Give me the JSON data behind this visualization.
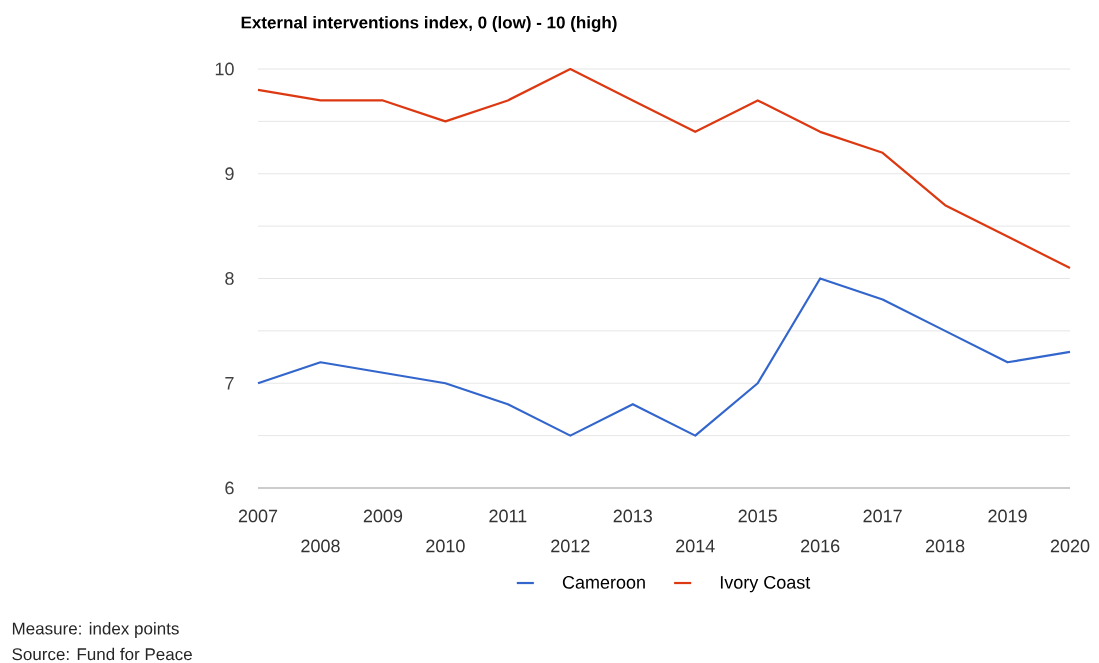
{
  "chart_data": {
    "type": "line",
    "title": "External interventions index, 0 (low) - 10 (high)",
    "categories": [
      "2007",
      "2008",
      "2009",
      "2010",
      "2011",
      "2012",
      "2013",
      "2014",
      "2015",
      "2016",
      "2017",
      "2018",
      "2019",
      "2020"
    ],
    "series": [
      {
        "name": "Cameroon",
        "color": "#3366cc",
        "values": [
          7.0,
          7.2,
          7.1,
          7.0,
          6.8,
          6.5,
          6.8,
          6.5,
          7.0,
          8.0,
          7.8,
          7.5,
          7.2,
          7.3
        ]
      },
      {
        "name": "Ivory Coast",
        "color": "#dc3912",
        "values": [
          9.8,
          9.7,
          9.7,
          9.5,
          9.7,
          10.0,
          9.7,
          9.4,
          9.7,
          9.4,
          9.2,
          8.7,
          8.4,
          8.1
        ]
      }
    ],
    "ylim": [
      6,
      10
    ],
    "yticks": [
      6,
      {
        "value": 6.5,
        "label": null
      },
      7,
      {
        "value": 7.5,
        "label": null
      },
      8,
      {
        "value": 8.5,
        "label": null
      },
      9,
      {
        "value": 9.5,
        "label": null
      },
      10
    ],
    "grid": "y",
    "legend": "bottom",
    "marker": "none",
    "line_style": "solid",
    "annotations": [
      "Measure: index points",
      "Source: Fund for Peace"
    ]
  }
}
